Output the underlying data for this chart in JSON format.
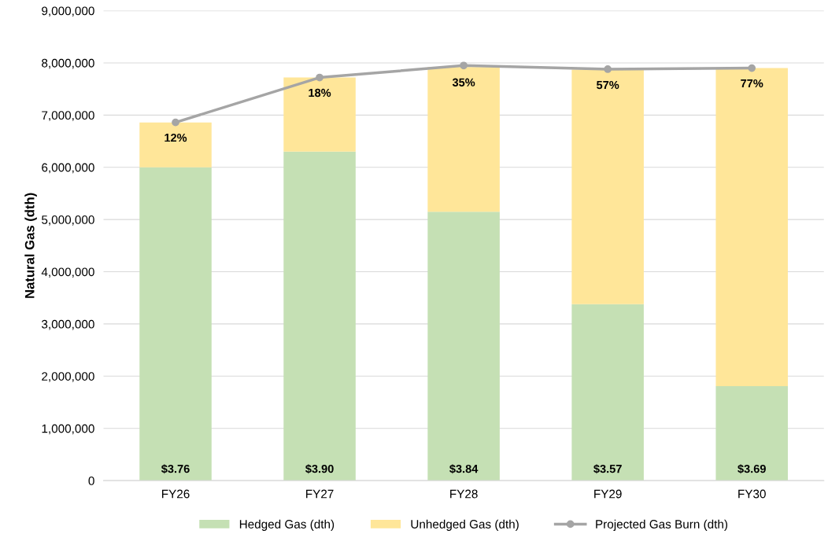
{
  "chart_data": {
    "type": "bar",
    "stacked": true,
    "ylabel": "Natural Gas (dth)",
    "categories": [
      "FY26",
      "FY27",
      "FY28",
      "FY29",
      "FY30"
    ],
    "series": [
      {
        "name": "Hedged Gas (dth)",
        "color": "#c5e0b4",
        "values": [
          6000000,
          6300000,
          5150000,
          3380000,
          1810000
        ]
      },
      {
        "name": "Unhedged Gas (dth)",
        "color": "#ffe699",
        "values": [
          860000,
          1420000,
          2770000,
          4490000,
          6090000
        ]
      },
      {
        "name": "Projected Gas Burn (dth)",
        "type": "line",
        "color": "#a5a5a5",
        "values": [
          6860000,
          7720000,
          7950000,
          7880000,
          7900000
        ],
        "marker": "circle",
        "line_style": "solid"
      }
    ],
    "ylim": [
      0,
      9000000
    ],
    "yticks": [
      {
        "value": 0,
        "label": "0"
      },
      {
        "value": 1000000,
        "label": "1,000,000"
      },
      {
        "value": 2000000,
        "label": "2,000,000"
      },
      {
        "value": 3000000,
        "label": "3,000,000"
      },
      {
        "value": 4000000,
        "label": "4,000,000"
      },
      {
        "value": 5000000,
        "label": "5,000,000"
      },
      {
        "value": 6000000,
        "label": "6,000,000"
      },
      {
        "value": 7000000,
        "label": "7,000,000"
      },
      {
        "value": 8000000,
        "label": "8,000,000"
      },
      {
        "value": 9000000,
        "label": "9,000,000"
      }
    ],
    "annotations": [
      {
        "text": "$3.76",
        "x": "FY26",
        "y": 0
      },
      {
        "text": "$3.90",
        "x": "FY27",
        "y": 0
      },
      {
        "text": "$3.84",
        "x": "FY28",
        "y": 0
      },
      {
        "text": "$3.57",
        "x": "FY29",
        "y": 0
      },
      {
        "text": "$3.69",
        "x": "FY30",
        "y": 0
      },
      {
        "text": "12%",
        "x": "FY26",
        "y": 6860000
      },
      {
        "text": "18%",
        "x": "FY27",
        "y": 7720000
      },
      {
        "text": "35%",
        "x": "FY28",
        "y": 7920000
      },
      {
        "text": "57%",
        "x": "FY29",
        "y": 7870000
      },
      {
        "text": "77%",
        "x": "FY30",
        "y": 7900000
      }
    ],
    "grid": "y",
    "legend": "bottom"
  }
}
